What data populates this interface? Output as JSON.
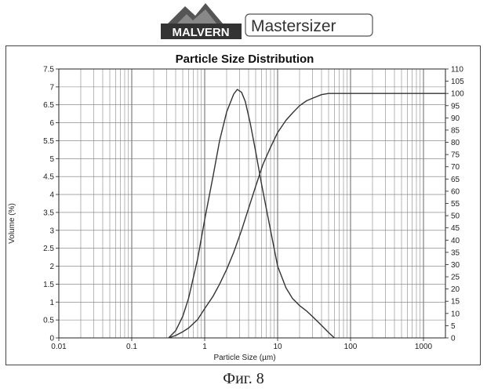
{
  "header": {
    "logo_text": "MALVERN",
    "product_name": "Mastersizer"
  },
  "caption": "Фиг. 8",
  "chart_data": {
    "type": "line",
    "title": "Particle Size Distribution",
    "xlabel": "Particle Size (µm)",
    "ylabel": "Volume (%)",
    "x_scale": "log",
    "xlim": [
      0.01,
      2000
    ],
    "ylim": [
      0,
      7.5
    ],
    "y2lim": [
      0,
      110
    ],
    "grid": true,
    "x_ticks": [
      {
        "value": 0.01,
        "label": "0.01"
      },
      {
        "value": 0.1,
        "label": "0.1"
      },
      {
        "value": 1,
        "label": "1"
      },
      {
        "value": 10,
        "label": "10"
      },
      {
        "value": 100,
        "label": "100"
      },
      {
        "value": 1000,
        "label": "1000"
      }
    ],
    "y_ticks": [
      "0",
      "0.5",
      "1",
      "1.5",
      "2",
      "2.5",
      "3",
      "3.5",
      "4",
      "4.5",
      "5",
      "5.5",
      "6",
      "6.5",
      "7",
      "7.5"
    ],
    "y2_ticks": [
      "0",
      "5",
      "10",
      "15",
      "20",
      "25",
      "30",
      "35",
      "40",
      "45",
      "50",
      "55",
      "60",
      "65",
      "70",
      "75",
      "80",
      "85",
      "90",
      "95",
      "100",
      "105",
      "110"
    ],
    "series": [
      {
        "axis": "left",
        "x": [
          0.32,
          0.4,
          0.5,
          0.6,
          0.8,
          1.0,
          1.3,
          1.6,
          2.0,
          2.5,
          2.8,
          3.2,
          3.6,
          4.2,
          5.0,
          6.0,
          8.0,
          10,
          13,
          16,
          20,
          25,
          30,
          40,
          50,
          60
        ],
        "y": [
          0,
          0.2,
          0.6,
          1.1,
          2.2,
          3.3,
          4.5,
          5.5,
          6.3,
          6.8,
          6.93,
          6.85,
          6.6,
          6.0,
          5.2,
          4.3,
          3.0,
          2.0,
          1.4,
          1.1,
          0.9,
          0.75,
          0.6,
          0.35,
          0.15,
          0
        ]
      },
      {
        "axis": "right",
        "x": [
          0.32,
          0.4,
          0.5,
          0.6,
          0.8,
          1.0,
          1.3,
          1.6,
          2.0,
          2.5,
          3.2,
          4.0,
          5.0,
          6.3,
          8.0,
          10,
          13,
          16,
          20,
          25,
          30,
          40,
          50,
          60,
          100,
          1000,
          2000
        ],
        "y": [
          0,
          1,
          2.5,
          4,
          7.5,
          12,
          17,
          22,
          28,
          35,
          44,
          53,
          62,
          71,
          78,
          84,
          89,
          92,
          95,
          97,
          98,
          99.5,
          100,
          100,
          100,
          100,
          100
        ]
      }
    ]
  }
}
